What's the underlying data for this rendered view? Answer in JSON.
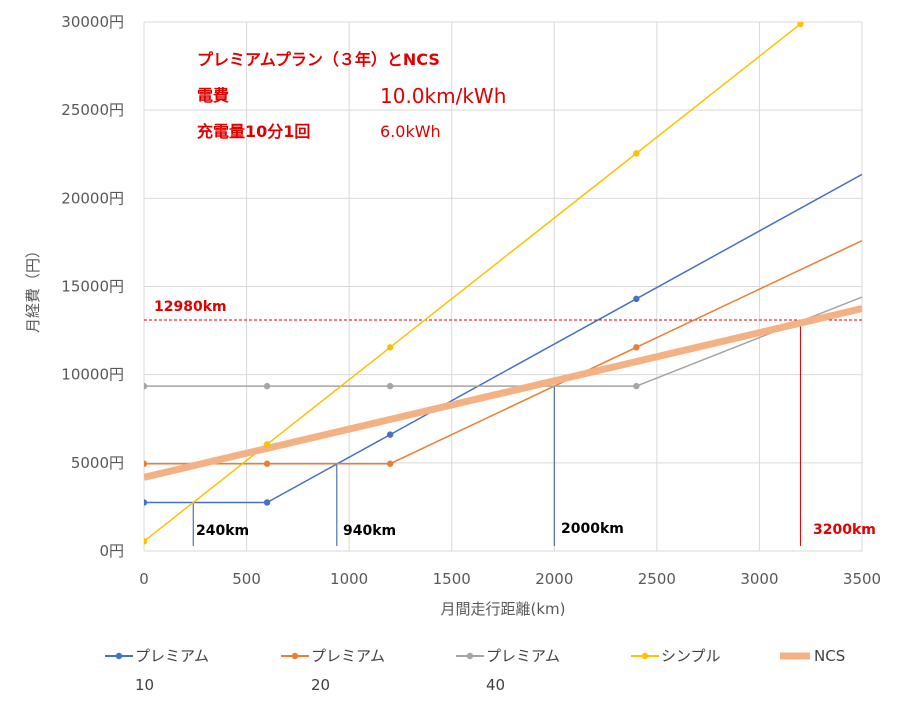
{
  "chart_data": {
    "type": "line",
    "xlabel": "月間走行距離(km)",
    "ylabel": "月経費（円）",
    "xlim": [
      0,
      3500
    ],
    "ylim": [
      0,
      30000
    ],
    "x_ticks": [
      "0",
      "500",
      "1000",
      "1500",
      "2000",
      "2500",
      "3000",
      "3500"
    ],
    "y_ticks": [
      "0円",
      "5000円",
      "10000円",
      "15000円",
      "20000円",
      "25000円",
      "30000円"
    ],
    "grid": true,
    "legend_position": "bottom",
    "info": {
      "title": "プレミアムプラン（３年）とNCS",
      "line2_label": "電費",
      "line2_value": "10.0km/kWh",
      "line3_label": "充電量10分1回",
      "line3_value": "6.0kWh"
    },
    "series": [
      {
        "name": "プレミアム",
        "legend_sub": "10",
        "color": "#4472c4",
        "width": 1.5,
        "markers": true,
        "points": [
          [
            0,
            2750
          ],
          [
            600,
            2750
          ],
          [
            1200,
            6600
          ],
          [
            2400,
            14300
          ],
          [
            3500,
            21360
          ]
        ]
      },
      {
        "name": "プレミアム",
        "legend_sub": "20",
        "color": "#ed7d31",
        "width": 1.5,
        "markers": true,
        "points": [
          [
            0,
            4950
          ],
          [
            600,
            4950
          ],
          [
            1200,
            4950
          ],
          [
            2400,
            11550
          ],
          [
            3500,
            17600
          ]
        ]
      },
      {
        "name": "プレミアム",
        "legend_sub": "40",
        "color": "#a5a5a5",
        "width": 1.5,
        "markers": true,
        "points": [
          [
            0,
            9350
          ],
          [
            600,
            9350
          ],
          [
            1200,
            9350
          ],
          [
            2400,
            9350
          ],
          [
            3500,
            14400
          ]
        ]
      },
      {
        "name": "シンプル",
        "legend_sub": "",
        "color": "#ffc000",
        "width": 1.5,
        "markers": true,
        "points": [
          [
            0,
            550
          ],
          [
            600,
            6050
          ],
          [
            1200,
            11550
          ],
          [
            2400,
            22550
          ],
          [
            3200,
            29890
          ]
        ]
      },
      {
        "name": "NCS",
        "legend_sub": "",
        "color": "#f4b183",
        "width": 7,
        "markers": false,
        "points": [
          [
            0,
            4180
          ],
          [
            3500,
            13750
          ]
        ]
      }
    ],
    "annotations": {
      "hline": {
        "y": 13100,
        "label": "12980km",
        "color": "#e00000"
      },
      "vlines": [
        {
          "x": 240,
          "label": "240km",
          "color": "#2f5597"
        },
        {
          "x": 940,
          "label": "940km",
          "color": "#2f5597"
        },
        {
          "x": 2000,
          "label": "2000km",
          "color": "#2f5597"
        },
        {
          "x": 3200,
          "label": "3200km",
          "color": "#e00000"
        }
      ]
    }
  }
}
